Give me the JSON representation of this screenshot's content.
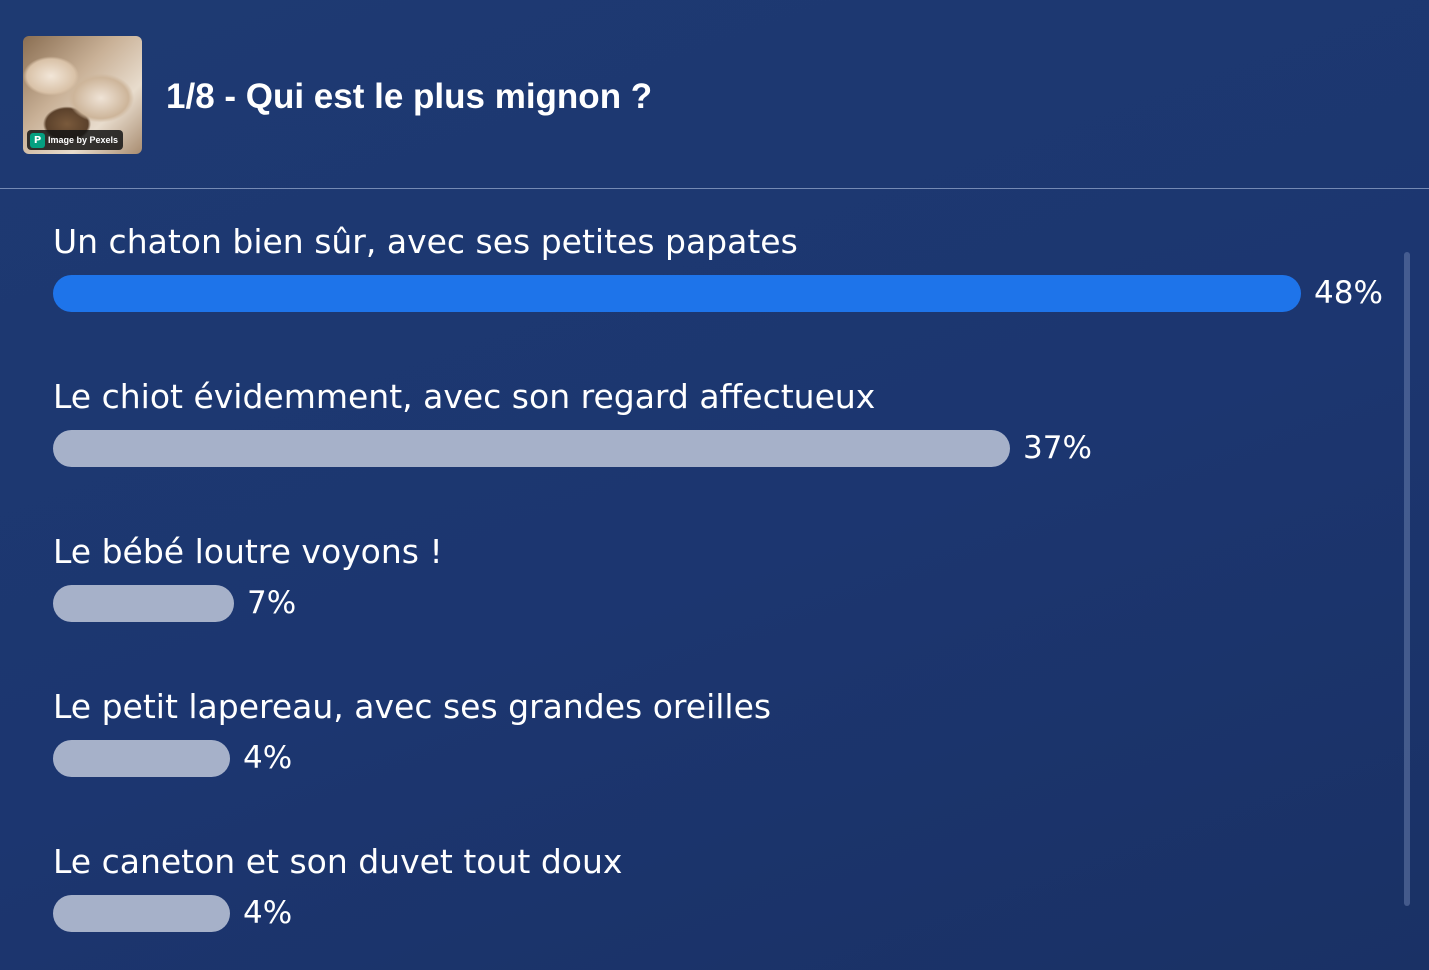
{
  "header": {
    "question_title": "1/8 - Qui est le plus mignon ?",
    "image_credit": "Image by Pexels",
    "credit_icon": "pexels-icon"
  },
  "colors": {
    "winner_bar": "#1e74ea",
    "other_bar": "#a6b1c9",
    "background": "#1d3870"
  },
  "options": [
    {
      "label": "Un chaton bien sûr, avec ses petites papates",
      "percent_label": "48%",
      "fill": 0.48,
      "winner": true
    },
    {
      "label": "Le chiot évidemment, avec son regard affectueux",
      "percent_label": "37%",
      "fill": 0.37,
      "winner": false
    },
    {
      "label": "Le bébé loutre voyons !",
      "percent_label": "7%",
      "fill": 0.07,
      "winner": false
    },
    {
      "label": "Le petit lapereau, avec ses grandes oreilles",
      "percent_label": "4%",
      "fill": 0.04,
      "winner": false
    },
    {
      "label": "Le caneton et son duvet tout doux",
      "percent_label": "4%",
      "fill": 0.04,
      "winner": false
    }
  ]
}
